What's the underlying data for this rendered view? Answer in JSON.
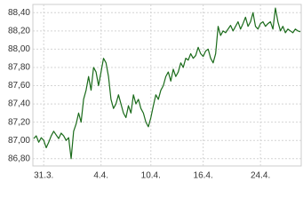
{
  "chart_data": {
    "type": "line",
    "color": "#1b6b1b",
    "grid": true,
    "categories": [
      null,
      null,
      null,
      null,
      "31.3.",
      null,
      null,
      null,
      null,
      null,
      null,
      null,
      null,
      null,
      null,
      null,
      null,
      null,
      null,
      null,
      null,
      null,
      null,
      null,
      null,
      null,
      null,
      "4.4.",
      null,
      null,
      null,
      null,
      null,
      null,
      null,
      null,
      null,
      null,
      null,
      null,
      null,
      null,
      null,
      null,
      null,
      null,
      null,
      "10.4.",
      null,
      null,
      null,
      null,
      null,
      null,
      null,
      null,
      null,
      null,
      null,
      null,
      null,
      null,
      null,
      null,
      null,
      null,
      null,
      null,
      "16.4.",
      null,
      null,
      null,
      null,
      null,
      null,
      null,
      null,
      null,
      null,
      null,
      null,
      null,
      null,
      null,
      null,
      null,
      null,
      null,
      null,
      null,
      null,
      "24.4.",
      null,
      null,
      null,
      null,
      null,
      null,
      null,
      null,
      null,
      null,
      null,
      null,
      null,
      null,
      null,
      null
    ],
    "values": [
      87.02,
      87.05,
      86.98,
      87.03,
      87.0,
      86.92,
      86.98,
      87.05,
      87.1,
      87.06,
      87.02,
      87.08,
      87.05,
      87.0,
      87.03,
      86.8,
      87.1,
      87.18,
      87.3,
      87.2,
      87.45,
      87.55,
      87.7,
      87.55,
      87.8,
      87.75,
      87.6,
      87.75,
      87.9,
      87.85,
      87.7,
      87.45,
      87.35,
      87.4,
      87.5,
      87.4,
      87.3,
      87.25,
      87.38,
      87.3,
      87.5,
      87.4,
      87.45,
      87.35,
      87.3,
      87.2,
      87.15,
      87.25,
      87.38,
      87.5,
      87.45,
      87.55,
      87.6,
      87.7,
      87.75,
      87.65,
      87.78,
      87.7,
      87.75,
      87.85,
      87.8,
      87.9,
      87.88,
      87.95,
      87.9,
      87.93,
      88.02,
      87.95,
      87.92,
      87.98,
      88.0,
      87.9,
      87.85,
      87.95,
      88.25,
      88.15,
      88.2,
      88.18,
      88.22,
      88.26,
      88.2,
      88.25,
      88.3,
      88.22,
      88.28,
      88.35,
      88.25,
      88.3,
      88.4,
      88.25,
      88.22,
      88.28,
      88.3,
      88.25,
      88.28,
      88.3,
      88.22,
      88.45,
      88.3,
      88.2,
      88.25,
      88.18,
      88.22,
      88.2,
      88.18,
      88.22,
      88.2,
      88.19
    ],
    "ylim": [
      86.72,
      88.49
    ],
    "yticks": [
      {
        "value": 86.8,
        "label": "86,80"
      },
      {
        "value": 87.0,
        "label": "87,00"
      },
      {
        "value": 87.2,
        "label": "87,20"
      },
      {
        "value": 87.4,
        "label": "87,40"
      },
      {
        "value": 87.6,
        "label": "87,60"
      },
      {
        "value": 87.8,
        "label": "87,80"
      },
      {
        "value": 88.0,
        "label": "88,00"
      },
      {
        "value": 88.2,
        "label": "88,20"
      },
      {
        "value": 88.4,
        "label": "88,40"
      }
    ]
  }
}
